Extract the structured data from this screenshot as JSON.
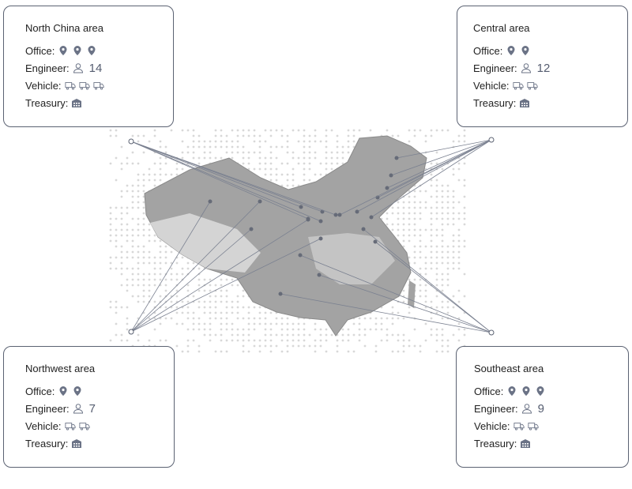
{
  "labels": {
    "office": "Office:",
    "engineer": "Engineer:",
    "vehicle": "Vehicle:",
    "treasury": "Treasury:"
  },
  "areas": [
    {
      "name": "North China area",
      "offices": 3,
      "engineers": "14",
      "vehicles": 3,
      "treasury": 1
    },
    {
      "name": "Central area",
      "offices": 2,
      "engineers": "12",
      "vehicles": 2,
      "treasury": 1
    },
    {
      "name": "Northwest area",
      "offices": 2,
      "engineers": "7",
      "vehicles": 2,
      "treasury": 1
    },
    {
      "name": "Southeast area",
      "offices": 3,
      "engineers": "9",
      "vehicles": 2,
      "treasury": 1
    }
  ],
  "icons": {
    "office": "map-pin-icon",
    "engineer": "engineer-icon",
    "vehicle": "truck-icon",
    "treasury": "building-icon"
  },
  "colors": {
    "border": "#5b6272",
    "icon": "#6b7386",
    "map": "#9a9a9a",
    "line": "#7a8090"
  }
}
